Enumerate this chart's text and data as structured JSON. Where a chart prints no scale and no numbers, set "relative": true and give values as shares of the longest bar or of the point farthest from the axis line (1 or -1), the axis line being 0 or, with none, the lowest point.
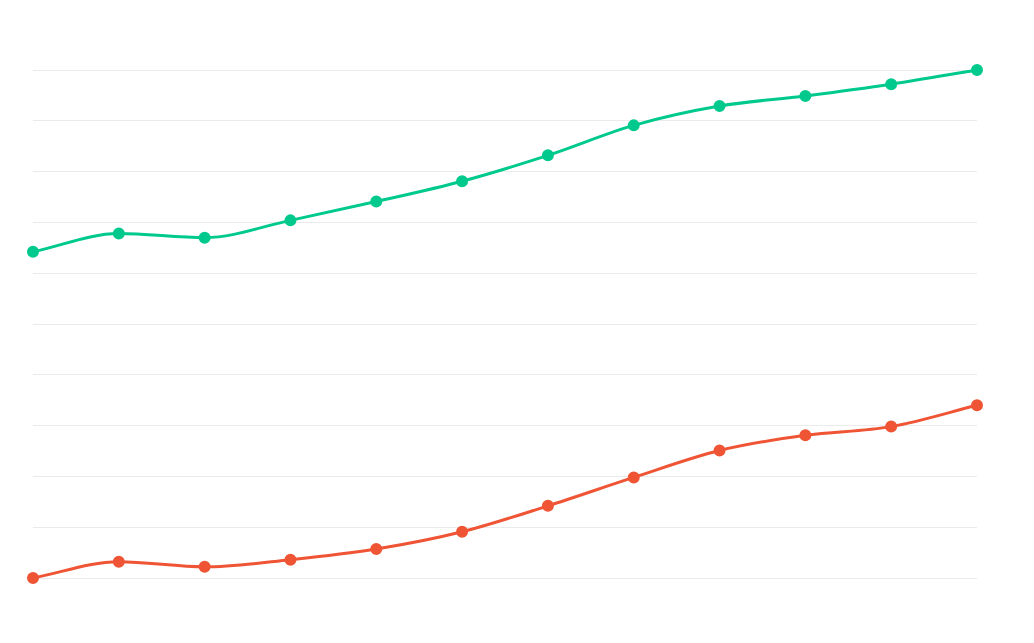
{
  "chart_data": {
    "type": "line",
    "relative": true,
    "grid": "y",
    "legend": false,
    "marker": "circle",
    "line_style": "solid",
    "categories": [
      null,
      null,
      null,
      null,
      null,
      null,
      null,
      null,
      null,
      null,
      null,
      null
    ],
    "series": [
      {
        "color": "#00c98d",
        "values": [
          0.642,
          0.678,
          0.67,
          0.704,
          0.741,
          0.781,
          0.832,
          0.891,
          0.929,
          0.949,
          0.972,
          1
        ]
      },
      {
        "color": "#ef5535",
        "values": [
          0,
          0.032,
          0.022,
          0.036,
          0.057,
          0.091,
          0.142,
          0.198,
          0.251,
          0.281,
          0.298,
          0.34
        ]
      }
    ]
  }
}
